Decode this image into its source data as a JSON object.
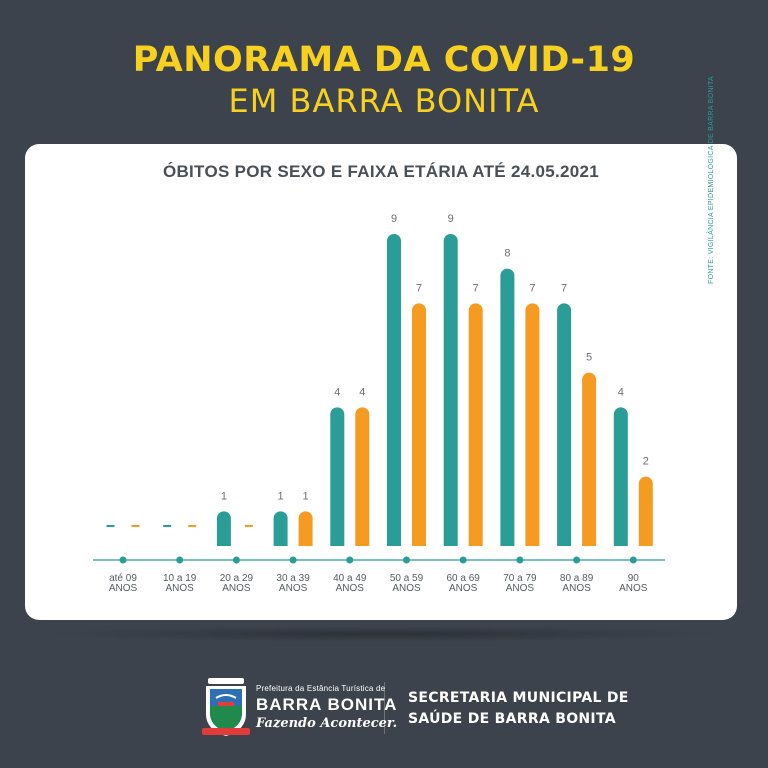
{
  "header": {
    "line1": "PANORAMA DA COVID-19",
    "line2": "EM BARRA BONITA"
  },
  "chart_data": {
    "type": "bar",
    "title": "ÓBITOS POR SEXO E FAIXA ETÁRIA ATÉ 24.05.2021",
    "source": "FONTE: VIGILÂNCIA EPIDEMIOLÓGICA DE BARRA BONITA",
    "categories": [
      [
        "até 09",
        "ANOS"
      ],
      [
        "10 a 19",
        "ANOS"
      ],
      [
        "20 a 29",
        "ANOS"
      ],
      [
        "30 a 39",
        "ANOS"
      ],
      [
        "40 a 49",
        "ANOS"
      ],
      [
        "50 a 59",
        "ANOS"
      ],
      [
        "60 a 69",
        "ANOS"
      ],
      [
        "70 a 79",
        "ANOS"
      ],
      [
        "80 a 89",
        "ANOS"
      ],
      [
        "90",
        "ANOS"
      ]
    ],
    "series": [
      {
        "color": "#2a9d96",
        "values": [
          0,
          0,
          1,
          1,
          4,
          9,
          9,
          8,
          7,
          4
        ]
      },
      {
        "color": "#f59b22",
        "values": [
          0,
          0,
          0,
          1,
          4,
          7,
          7,
          7,
          5,
          2
        ]
      }
    ],
    "ylim": [
      0,
      9
    ],
    "grid": false,
    "legend": "none",
    "axis_color": "#2a9d96"
  },
  "footer": {
    "prefeitura_small": "Prefeitura da Estância Turística de",
    "city": "BARRA BONITA",
    "slogan": "Fazendo Acontecer.",
    "secretaria_line1": "SECRETARIA MUNICIPAL DE",
    "secretaria_line2": "SAÚDE DE BARRA BONITA",
    "logo_icon": "city-coat-of-arms-icon"
  }
}
